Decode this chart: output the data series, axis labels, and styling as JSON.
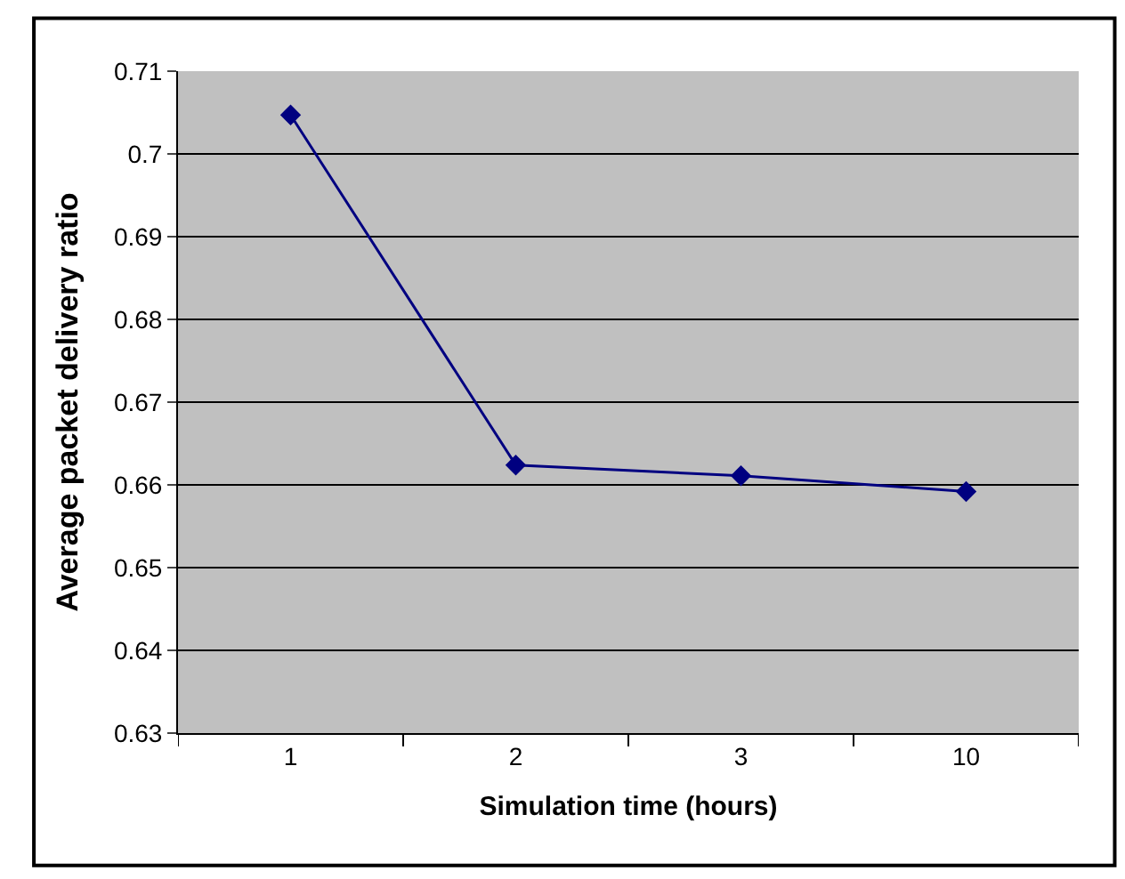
{
  "chart_data": {
    "type": "line",
    "xlabel": "Simulation time (hours)",
    "ylabel": "Average packet delivery ratio",
    "categories": [
      "1",
      "2",
      "3",
      "10"
    ],
    "series": [
      {
        "color": "#000080",
        "values": [
          0.7047,
          0.6624,
          0.6611,
          0.6592
        ]
      }
    ],
    "ylim": [
      0.63,
      0.71
    ],
    "yticks": [
      0.63,
      0.64,
      0.65,
      0.66,
      0.67,
      0.68,
      0.69,
      0.7,
      0.71
    ],
    "grid": "y",
    "marker": "diamond",
    "line_style": "solid"
  }
}
